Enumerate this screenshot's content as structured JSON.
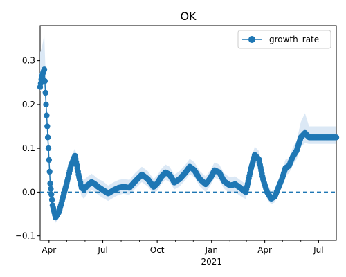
{
  "chart_data": {
    "type": "line",
    "title": "OK",
    "xlabel": "",
    "ylabel": "",
    "xlim": [
      "2020-03-17",
      "2021-07-31"
    ],
    "ylim": [
      -0.11,
      0.38
    ],
    "yticks": [
      -0.1,
      0.0,
      0.1,
      0.2,
      0.3
    ],
    "ytick_labels": [
      "−0.1",
      "0.0",
      "0.1",
      "0.2",
      "0.3"
    ],
    "xticks": [
      {
        "date": "2020-04-01",
        "label": "Apr"
      },
      {
        "date": "2020-07-01",
        "label": "Jul"
      },
      {
        "date": "2020-10-01",
        "label": "Oct"
      },
      {
        "date": "2021-01-01",
        "label": "Jan"
      },
      {
        "date": "2021-04-01",
        "label": "Apr"
      },
      {
        "date": "2021-07-01",
        "label": "Jul"
      }
    ],
    "year_label": {
      "date": "2021-01-01",
      "label": "2021"
    },
    "reference_line": {
      "y": 0.0,
      "style": "dashed"
    },
    "legend": {
      "position": "top-right",
      "entries": [
        "growth_rate"
      ]
    },
    "grid": false,
    "colors": {
      "series": "#1f77b4",
      "band": "#dbe8f5"
    },
    "series": [
      {
        "name": "growth_rate",
        "x": [
          "2020-03-17",
          "2020-03-20",
          "2020-03-24",
          "2020-03-27",
          "2020-03-31",
          "2020-04-03",
          "2020-04-07",
          "2020-04-12",
          "2020-04-18",
          "2020-04-24",
          "2020-05-01",
          "2020-05-08",
          "2020-05-15",
          "2020-05-21",
          "2020-05-26",
          "2020-05-30",
          "2020-06-05",
          "2020-06-12",
          "2020-06-18",
          "2020-06-23",
          "2020-07-01",
          "2020-07-10",
          "2020-07-20",
          "2020-07-28",
          "2020-08-05",
          "2020-08-15",
          "2020-08-25",
          "2020-09-05",
          "2020-09-15",
          "2020-09-25",
          "2020-10-01",
          "2020-10-08",
          "2020-10-15",
          "2020-10-22",
          "2020-10-30",
          "2020-11-08",
          "2020-11-18",
          "2020-11-25",
          "2020-12-03",
          "2020-12-12",
          "2020-12-22",
          "2020-12-30",
          "2021-01-06",
          "2021-01-14",
          "2021-01-22",
          "2021-02-01",
          "2021-02-10",
          "2021-02-20",
          "2021-02-28",
          "2021-03-08",
          "2021-03-15",
          "2021-03-22",
          "2021-03-29",
          "2021-04-05",
          "2021-04-12",
          "2021-04-18",
          "2021-04-24",
          "2021-04-30",
          "2021-05-06",
          "2021-05-12",
          "2021-05-18",
          "2021-05-25",
          "2021-06-01",
          "2021-06-08",
          "2021-06-15",
          "2021-06-22",
          "2021-06-29",
          "2021-07-05",
          "2021-07-15",
          "2021-07-25",
          "2021-07-31"
        ],
        "y": [
          0.24,
          0.265,
          0.28,
          0.2,
          0.1,
          0.02,
          -0.03,
          -0.058,
          -0.045,
          -0.015,
          0.02,
          0.06,
          0.083,
          0.04,
          0.01,
          0.006,
          0.015,
          0.023,
          0.018,
          0.012,
          0.005,
          -0.003,
          0.005,
          0.01,
          0.012,
          0.01,
          0.025,
          0.04,
          0.03,
          0.012,
          0.02,
          0.035,
          0.045,
          0.04,
          0.022,
          0.03,
          0.045,
          0.058,
          0.05,
          0.03,
          0.018,
          0.032,
          0.05,
          0.045,
          0.025,
          0.015,
          0.018,
          0.008,
          0.0,
          0.05,
          0.085,
          0.075,
          0.03,
          0.0,
          -0.015,
          -0.01,
          0.01,
          0.03,
          0.055,
          0.06,
          0.08,
          0.095,
          0.125,
          0.135,
          0.125,
          0.125,
          0.125,
          0.125,
          0.125,
          0.125,
          0.125
        ],
        "lower": [
          0.23,
          0.245,
          0.25,
          0.18,
          0.085,
          0.005,
          -0.045,
          -0.07,
          -0.058,
          -0.03,
          0.003,
          0.042,
          0.064,
          0.022,
          -0.01,
          -0.015,
          -0.003,
          0.005,
          0.0,
          -0.006,
          -0.013,
          -0.02,
          -0.012,
          -0.006,
          -0.004,
          -0.006,
          0.008,
          0.023,
          0.013,
          -0.004,
          0.003,
          0.018,
          0.028,
          0.023,
          0.006,
          0.013,
          0.028,
          0.041,
          0.034,
          0.013,
          0.0,
          0.015,
          0.033,
          0.028,
          0.008,
          -0.003,
          0.0,
          -0.01,
          -0.016,
          0.033,
          0.066,
          0.056,
          0.012,
          -0.016,
          -0.028,
          -0.023,
          -0.005,
          0.013,
          0.038,
          0.043,
          0.062,
          0.075,
          0.103,
          0.112,
          0.11,
          0.11,
          0.11,
          0.11,
          0.11,
          0.11,
          0.11
        ],
        "upper": [
          0.32,
          0.33,
          0.36,
          0.24,
          0.115,
          0.035,
          -0.015,
          -0.045,
          -0.03,
          0.002,
          0.04,
          0.08,
          0.1,
          0.06,
          0.03,
          0.028,
          0.035,
          0.042,
          0.036,
          0.03,
          0.025,
          0.015,
          0.023,
          0.028,
          0.03,
          0.028,
          0.044,
          0.058,
          0.048,
          0.03,
          0.038,
          0.053,
          0.063,
          0.058,
          0.04,
          0.048,
          0.063,
          0.076,
          0.068,
          0.048,
          0.036,
          0.05,
          0.068,
          0.063,
          0.043,
          0.034,
          0.036,
          0.026,
          0.018,
          0.068,
          0.104,
          0.094,
          0.048,
          0.018,
          0.002,
          0.006,
          0.026,
          0.048,
          0.074,
          0.078,
          0.1,
          0.118,
          0.16,
          0.18,
          0.15,
          0.15,
          0.15,
          0.15,
          0.15,
          0.15,
          0.15
        ]
      }
    ]
  }
}
